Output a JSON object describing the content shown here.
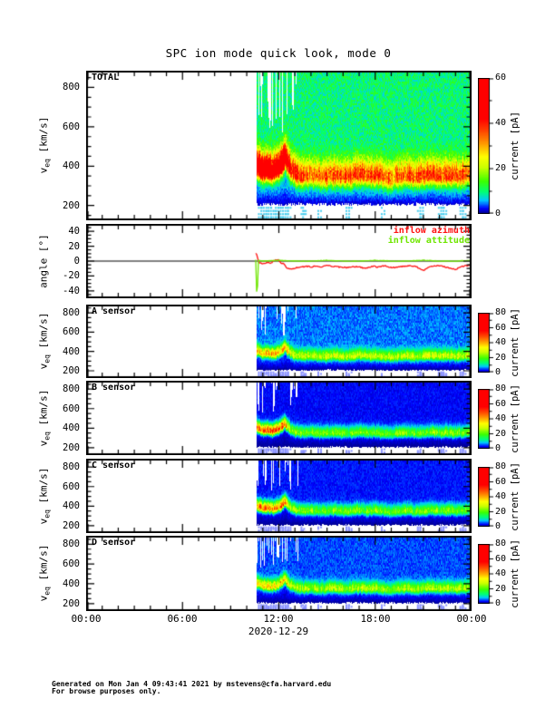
{
  "title": "SPC ion mode quick look, mode 0",
  "x_axis": {
    "tick_labels": [
      "00:00",
      "06:00",
      "12:00",
      "18:00",
      "00:00"
    ],
    "tick_hours": [
      0,
      6,
      12,
      18,
      24
    ],
    "minor_step_hours": 1,
    "date_label": "2020-12-29"
  },
  "footer": {
    "line1": "Generated on Mon Jan  4 09:43:41 2021 by mstevens@cfa.harvard.edu",
    "line2": "For browse purposes only."
  },
  "colormap_stops": [
    [
      0.0,
      "#000082"
    ],
    [
      0.04,
      "#0000ff"
    ],
    [
      0.1,
      "#00c8ff"
    ],
    [
      0.16,
      "#00ff78"
    ],
    [
      0.24,
      "#3cff00"
    ],
    [
      0.34,
      "#c8ff00"
    ],
    [
      0.42,
      "#ffff00"
    ],
    [
      0.52,
      "#ff9600"
    ],
    [
      0.62,
      "#ff3c00"
    ],
    [
      0.7,
      "#ff0000"
    ],
    [
      1.0,
      "#ff0000"
    ]
  ],
  "beam": {
    "hours": [
      10.6,
      10.8,
      11.0,
      11.3,
      11.6,
      11.9,
      12.1,
      12.35,
      12.5,
      12.7,
      13.0,
      13.4,
      14.0,
      14.5,
      15.0,
      15.5,
      16.0,
      16.5,
      17.0,
      17.5,
      18.0,
      18.5,
      19.0,
      19.5,
      20.0,
      20.5,
      21.0,
      21.5,
      22.0,
      22.5,
      23.0,
      23.5,
      24.0
    ],
    "velocity_km_s": [
      400,
      385,
      370,
      375,
      365,
      380,
      395,
      440,
      410,
      380,
      355,
      345,
      350,
      340,
      345,
      350,
      340,
      345,
      355,
      345,
      350,
      340,
      335,
      345,
      350,
      340,
      345,
      355,
      345,
      350,
      345,
      350,
      355
    ]
  },
  "flags": {
    "hours": [
      10.7,
      10.85,
      11.0,
      11.15,
      11.3,
      11.45,
      11.6,
      11.75,
      11.9,
      12.05,
      12.2,
      12.35,
      12.5,
      13.35,
      13.45,
      14.4,
      16.15,
      16.3,
      18.35,
      20.6,
      20.75,
      21.9,
      22.05,
      22.2,
      23.25,
      23.4
    ]
  },
  "chart_data": [
    {
      "type": "heatmap",
      "panel_label": "TOTAL",
      "ylabel": {
        "base": "v",
        "sub": "eq",
        "unit": " [km/s]"
      },
      "ylim": [
        125,
        885
      ],
      "yticks": [
        200,
        400,
        600,
        800
      ],
      "y_minor_step": 50,
      "data_start_hour": 10.6,
      "dropout_until_hour": 13.2,
      "background_current_pA": 10,
      "peak_current_pA": [
        52,
        58,
        55,
        57,
        52,
        55,
        58,
        60,
        45,
        35,
        30,
        27,
        26,
        25,
        26,
        27,
        25,
        26,
        28,
        26,
        27,
        25,
        24,
        26,
        27,
        25,
        26,
        28,
        26,
        27,
        26,
        26,
        27
      ],
      "beam_width_km_s": {
        "low": 30,
        "high": 58
      },
      "flag_color": "#44ccee",
      "colorbar": {
        "label": "current [pA]",
        "range": [
          0,
          60
        ],
        "ticks": [
          0,
          20,
          40,
          60
        ],
        "minor_step": 10
      }
    },
    {
      "type": "line",
      "panel_label": "",
      "ylabel": {
        "base": "angle",
        "sub": "",
        "unit": " [°]"
      },
      "ylim": [
        -50,
        50
      ],
      "yticks": [
        -40,
        -20,
        0,
        20,
        40
      ],
      "y_minor_step": 5,
      "zero_line": 0,
      "series": [
        {
          "name": "inflow azimuth",
          "color": "#ff1414",
          "hours": [
            10.6,
            10.65,
            10.75,
            10.9,
            11.1,
            11.3,
            11.5,
            11.7,
            11.9,
            12.0,
            12.1,
            12.3,
            12.5,
            12.7,
            12.9,
            13.1,
            13.4,
            13.7,
            14.0,
            14.3,
            14.6,
            15.0,
            15.4,
            15.8,
            16.2,
            16.6,
            17.0,
            17.4,
            17.8,
            18.2,
            18.6,
            19.0,
            19.4,
            19.8,
            20.2,
            20.6,
            21.0,
            21.4,
            21.8,
            22.2,
            22.6,
            23.0,
            23.4,
            23.8,
            24.0
          ],
          "values_deg": [
            10,
            6,
            -2,
            -3,
            -3,
            -2,
            -3,
            1,
            2,
            1,
            -2,
            -4,
            -9,
            -11,
            -10,
            -9,
            -8,
            -7,
            -8,
            -7,
            -8,
            -6,
            -7,
            -8,
            -9,
            -7,
            -8,
            -10,
            -7,
            -8,
            -6,
            -9,
            -8,
            -7,
            -6,
            -8,
            -13,
            -8,
            -6,
            -7,
            -9,
            -11,
            -7,
            -6,
            -5
          ]
        },
        {
          "name": "inflow attitude",
          "color": "#6fe600",
          "hours": [
            10.6,
            10.62,
            10.66,
            10.7,
            11.0,
            12.0,
            13.0,
            14.0,
            15.0,
            16.0,
            17.0,
            18.0,
            19.0,
            20.0,
            21.0,
            22.0,
            23.0,
            24.0
          ],
          "values_deg": [
            2,
            -50,
            -50,
            1,
            0,
            1,
            0,
            0,
            1,
            0,
            0,
            1,
            0,
            0,
            1,
            0,
            0,
            1
          ]
        }
      ]
    },
    {
      "type": "heatmap",
      "panel_label": "A sensor",
      "ylabel": {
        "base": "v",
        "sub": "eq",
        "unit": " [km/s]"
      },
      "ylim": [
        125,
        885
      ],
      "yticks": [
        200,
        400,
        600,
        800
      ],
      "y_minor_step": 50,
      "data_start_hour": 10.6,
      "dropout_until_hour": 13.2,
      "background_current_pA": 6,
      "peak_current_pA": [
        30,
        33,
        32,
        33,
        30,
        32,
        33,
        35,
        28,
        24,
        22,
        21,
        21,
        20,
        21,
        22,
        20,
        21,
        22,
        21,
        21,
        20,
        20,
        21,
        22,
        20,
        21,
        22,
        21,
        22,
        21,
        21,
        22
      ],
      "beam_width_km_s": {
        "low": 26,
        "high": 48
      },
      "flag_color": "#8890ff",
      "colorbar": {
        "label": "current [pA]",
        "range": [
          0,
          80
        ],
        "ticks": [
          0,
          20,
          40,
          60,
          80
        ],
        "minor_step": 10
      }
    },
    {
      "type": "heatmap",
      "panel_label": "B sensor",
      "ylabel": {
        "base": "v",
        "sub": "eq",
        "unit": " [km/s]"
      },
      "ylim": [
        125,
        885
      ],
      "yticks": [
        200,
        400,
        600,
        800
      ],
      "y_minor_step": 50,
      "data_start_hour": 10.6,
      "dropout_until_hour": 13.2,
      "background_current_pA": 3.2,
      "peak_current_pA": [
        40,
        44,
        42,
        44,
        40,
        42,
        44,
        46,
        30,
        22,
        19,
        18,
        18,
        17,
        18,
        19,
        17,
        18,
        19,
        18,
        18,
        17,
        17,
        18,
        19,
        17,
        18,
        19,
        18,
        19,
        18,
        18,
        19
      ],
      "beam_width_km_s": {
        "low": 26,
        "high": 48
      },
      "flag_color": "#8890ff",
      "colorbar": {
        "label": "current [pA]",
        "range": [
          0,
          80
        ],
        "ticks": [
          0,
          20,
          40,
          60,
          80
        ],
        "minor_step": 10
      }
    },
    {
      "type": "heatmap",
      "panel_label": "C sensor",
      "ylabel": {
        "base": "v",
        "sub": "eq",
        "unit": " [km/s]"
      },
      "ylim": [
        125,
        885
      ],
      "yticks": [
        200,
        400,
        600,
        800
      ],
      "y_minor_step": 50,
      "data_start_hour": 10.6,
      "dropout_until_hour": 13.2,
      "background_current_pA": 3.6,
      "peak_current_pA": [
        38,
        42,
        40,
        42,
        38,
        40,
        42,
        44,
        29,
        21,
        19,
        18,
        18,
        17,
        18,
        19,
        17,
        18,
        19,
        18,
        18,
        17,
        17,
        18,
        19,
        17,
        18,
        19,
        18,
        19,
        18,
        18,
        19
      ],
      "beam_width_km_s": {
        "low": 26,
        "high": 48
      },
      "flag_color": "#8890ff",
      "colorbar": {
        "label": "current [pA]",
        "range": [
          0,
          80
        ],
        "ticks": [
          0,
          20,
          40,
          60,
          80
        ],
        "minor_step": 10
      }
    },
    {
      "type": "heatmap",
      "panel_label": "D sensor",
      "ylabel": {
        "base": "v",
        "sub": "eq",
        "unit": " [km/s]"
      },
      "ylim": [
        125,
        885
      ],
      "yticks": [
        200,
        400,
        600,
        800
      ],
      "y_minor_step": 50,
      "data_start_hour": 10.6,
      "dropout_until_hour": 13.2,
      "background_current_pA": 5,
      "peak_current_pA": [
        28,
        31,
        30,
        31,
        28,
        30,
        31,
        33,
        26,
        23,
        21,
        20,
        20,
        19,
        20,
        21,
        19,
        20,
        21,
        20,
        20,
        19,
        19,
        20,
        21,
        19,
        20,
        21,
        20,
        21,
        20,
        20,
        21
      ],
      "beam_width_km_s": {
        "low": 26,
        "high": 48
      },
      "flag_color": "#8890ff",
      "colorbar": {
        "label": "current [pA]",
        "range": [
          0,
          80
        ],
        "ticks": [
          0,
          20,
          40,
          60,
          80
        ],
        "minor_step": 10
      }
    }
  ]
}
